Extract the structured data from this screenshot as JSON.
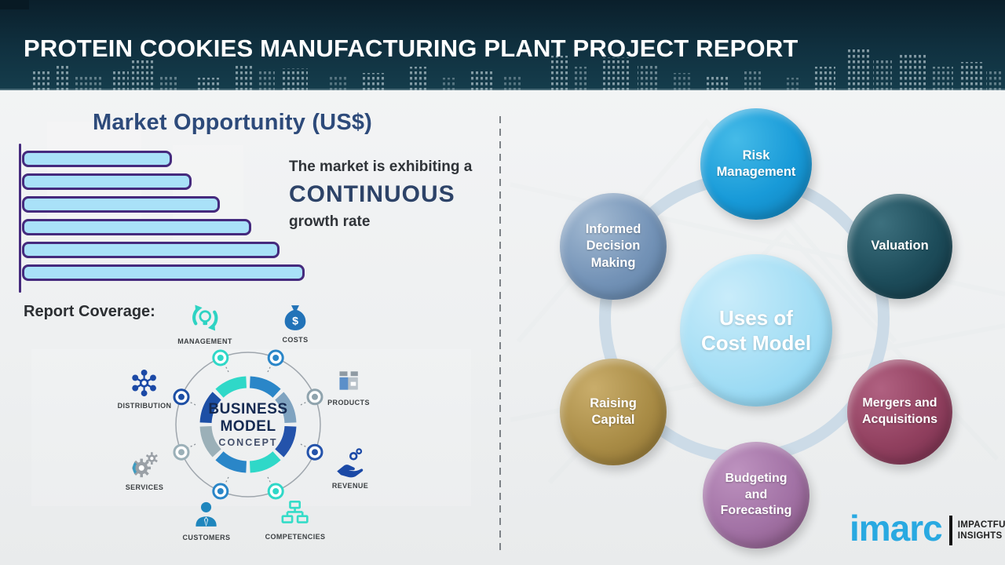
{
  "header": {
    "title": "PROTEIN COOKIES MANUFACTURING PLANT PROJECT REPORT"
  },
  "market_opportunity": {
    "title": "Market Opportunity (US$)",
    "note_line1": "The market is exhibiting a",
    "note_emphasis": "CONTINUOUS",
    "note_line2": "growth rate"
  },
  "chart_data": {
    "type": "bar",
    "orientation": "horizontal",
    "title": "Market Opportunity (US$)",
    "values": [
      53,
      60,
      70,
      81,
      91,
      100
    ],
    "value_note": "bars are unlabeled; values are relative lengths as % of longest bar",
    "axis_labels_shown": false,
    "bar_fill": "#a9e1f8",
    "bar_border": "#452a7d"
  },
  "report_coverage": {
    "label": "Report Coverage:",
    "business_model": {
      "center_line1": "BUSINESS",
      "center_line2": "MODEL",
      "center_line3": "CONCEPT",
      "items": [
        {
          "label": "MANAGEMENT"
        },
        {
          "label": "COSTS"
        },
        {
          "label": "DISTRIBUTION"
        },
        {
          "label": "PRODUCTS"
        },
        {
          "label": "SERVICES"
        },
        {
          "label": "REVENUE"
        },
        {
          "label": "CUSTOMERS"
        },
        {
          "label": "COMPETENCIES"
        }
      ]
    }
  },
  "cost_model": {
    "center_label": "Uses of\nCost Model",
    "nodes": {
      "risk": {
        "label": "Risk\nManagement",
        "color": "#189ad8"
      },
      "informed": {
        "label": "Informed\nDecision\nMaking",
        "color": "#7493b7"
      },
      "valuation": {
        "label": "Valuation",
        "color": "#1d4c5a"
      },
      "raising": {
        "label": "Raising\nCapital",
        "color": "#a98c46"
      },
      "mergers": {
        "label": "Mergers and\nAcquisitions",
        "color": "#91405f"
      },
      "budgeting": {
        "label": "Budgeting\nand\nForecasting",
        "color": "#a272a5"
      }
    }
  },
  "logo": {
    "word": "imarc",
    "tagline_line1": "IMPACTFUL",
    "tagline_line2": "INSIGHTS",
    "brand_color": "#29a9e1"
  }
}
